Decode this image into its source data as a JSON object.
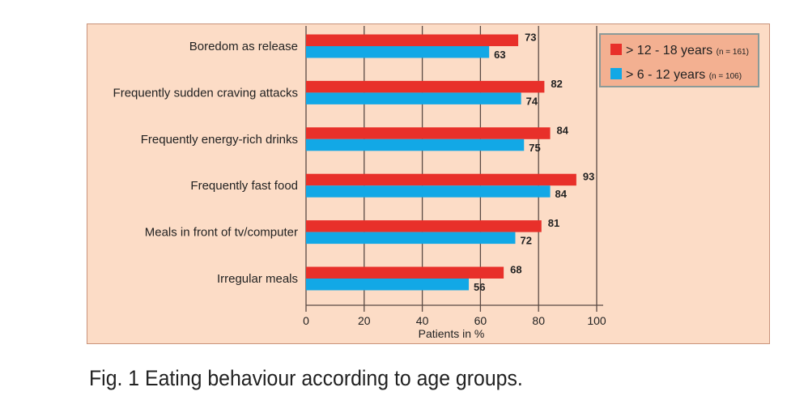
{
  "chart_data": {
    "type": "bar",
    "orientation": "horizontal",
    "categories": [
      "Boredom as release",
      "Frequently sudden craving attacks",
      "Frequently energy-rich drinks",
      "Frequently fast food",
      "Meals in front of tv/computer",
      "Irregular meals"
    ],
    "series": [
      {
        "name": "> 12 - 18 years",
        "note": "(n = 161)",
        "color": "#e8302a",
        "values": [
          73,
          82,
          84,
          93,
          81,
          68
        ]
      },
      {
        "name": "> 6 - 12 years",
        "note": "(n = 106)",
        "color": "#12a8e6",
        "values": [
          63,
          74,
          75,
          84,
          72,
          56
        ]
      }
    ],
    "xlabel": "Patients in %",
    "xlim": [
      0,
      100
    ],
    "xticks": [
      0,
      20,
      40,
      60,
      80,
      100
    ],
    "grid": true,
    "legend": "top-right",
    "background": "#fcdcc6",
    "legend_background": "#f3b091"
  },
  "caption": "Fig. 1 Eating behaviour according to age groups."
}
